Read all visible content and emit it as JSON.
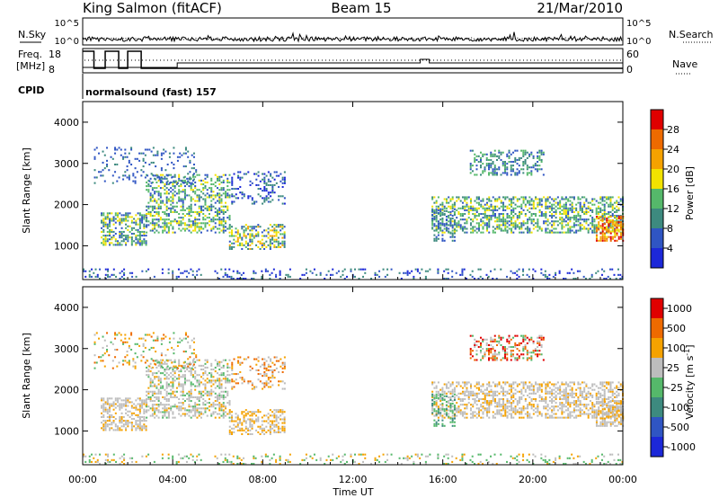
{
  "header": {
    "station": "King Salmon (fitACF)",
    "beam": "Beam 15",
    "date": "21/Mar/2010"
  },
  "status_panels": {
    "nsky_label": "N.Sky",
    "nsky_ticks": [
      "10^5",
      "10^0"
    ],
    "nsearch_label": "N.Search",
    "nsearch_ticks": [
      "10^5",
      "10^0"
    ],
    "freq_label_line1": "Freq.",
    "freq_label_line2": "[MHz]",
    "freq_ticks": [
      "18",
      "8"
    ],
    "nave_label": "Nave",
    "nave_ticks": [
      "60",
      "0"
    ],
    "cpid_label": "CPID",
    "cpid_value": "normalsound (fast) 157"
  },
  "chart_data": [
    {
      "type": "heatmap",
      "parameter": "power",
      "ylabel": "Slant Range [km]",
      "yticks": [
        "1000",
        "2000",
        "3000",
        "4000"
      ],
      "y_values": [
        1000,
        2000,
        3000,
        4000
      ],
      "ylim": [
        180,
        4500
      ],
      "colorbar_label": "Power [dB]",
      "colorbar_ticks": [
        "4",
        "8",
        "12",
        "16",
        "20",
        "24",
        "28"
      ],
      "colorbar_colors": [
        "#1c28d8",
        "#2f55c3",
        "#3d8a7f",
        "#55b86a",
        "#f2e200",
        "#f5a200",
        "#ee6a00",
        "#e00000"
      ]
    },
    {
      "type": "heatmap",
      "parameter": "velocity",
      "ylabel": "Slant Range [km]",
      "yticks": [
        "1000",
        "2000",
        "3000",
        "4000"
      ],
      "y_values": [
        1000,
        2000,
        3000,
        4000
      ],
      "ylim": [
        180,
        4500
      ],
      "colorbar_label": "Velocity [m s",
      "colorbar_label_sup": "-1",
      "colorbar_label_end": "]",
      "colorbar_ticks": [
        "1000",
        "500",
        "100",
        "25",
        "-25",
        "-100",
        "-500",
        "-1000"
      ],
      "colorbar_colors": [
        "#1c28d8",
        "#2f55c3",
        "#3d8a7f",
        "#55b86a",
        "#bdbdbd",
        "#f5a200",
        "#ee6a00",
        "#e00000"
      ]
    }
  ],
  "xaxis": {
    "xlabel": "Time UT",
    "tick_labels": [
      "00:00",
      "04:00",
      "08:00",
      "12:00",
      "16:00",
      "20:00",
      "00:00"
    ],
    "tick_hours": [
      0,
      4,
      8,
      12,
      16,
      20,
      24
    ],
    "xlim_hours": [
      0,
      24
    ]
  }
}
